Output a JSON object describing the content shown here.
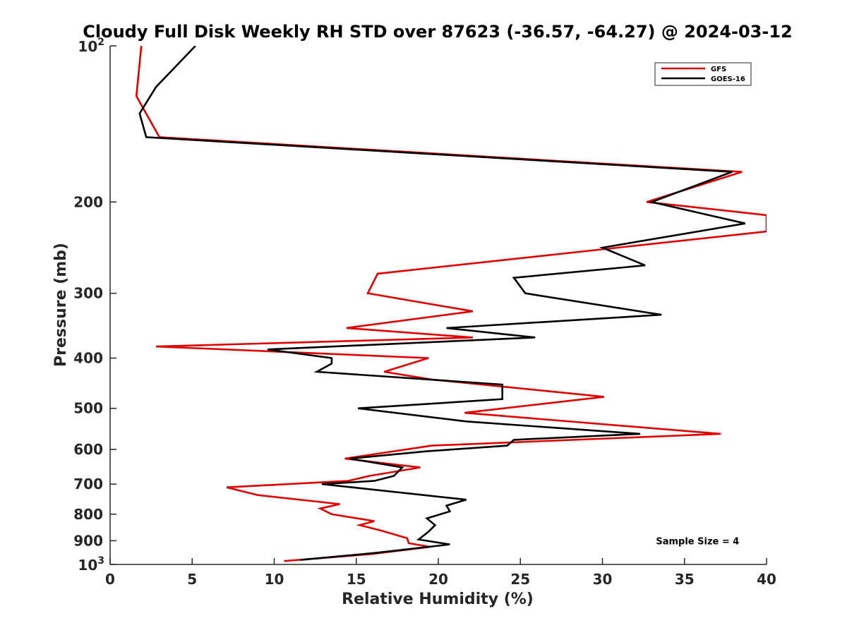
{
  "chart_data": {
    "type": "line",
    "title": "Cloudy Full Disk Weekly RH STD over 87623 (-36.57, -64.27) @ 2024-03-12",
    "xlabel": "Relative Humidity (%)",
    "ylabel": "Pressure (mb)",
    "xlim": [
      0,
      40
    ],
    "ylim": [
      100,
      1000
    ],
    "yscale": "log",
    "y_reversed": true,
    "x_ticks": [
      "0",
      "5",
      "10",
      "15",
      "20",
      "25",
      "30",
      "35",
      "40"
    ],
    "y_ticks": [
      {
        "value": 100,
        "base": "10",
        "exp": "2"
      },
      {
        "value": 200,
        "label": "200"
      },
      {
        "value": 300,
        "label": "300"
      },
      {
        "value": 400,
        "label": "400"
      },
      {
        "value": 500,
        "label": "500"
      },
      {
        "value": 600,
        "label": "600"
      },
      {
        "value": 700,
        "label": "700"
      },
      {
        "value": 800,
        "label": "800"
      },
      {
        "value": 900,
        "label": "900"
      },
      {
        "value": 1000,
        "base": "10",
        "exp": "3"
      }
    ],
    "grid": false,
    "legend_position": "top-right",
    "series": [
      {
        "name": "GFS",
        "color": "#e00000",
        "points": [
          [
            1.9,
            100
          ],
          [
            1.6,
            125
          ],
          [
            3.0,
            150
          ],
          [
            38.5,
            175
          ],
          [
            32.7,
            200
          ],
          [
            40.0,
            212
          ],
          [
            40.0,
            228
          ],
          [
            16.3,
            275
          ],
          [
            15.7,
            300
          ],
          [
            22.1,
            325
          ],
          [
            14.4,
            350
          ],
          [
            22.1,
            365
          ],
          [
            2.8,
            380
          ],
          [
            19.4,
            400
          ],
          [
            16.7,
            425
          ],
          [
            19.6,
            440
          ],
          [
            30.1,
            475
          ],
          [
            21.6,
            510
          ],
          [
            37.2,
            560
          ],
          [
            19.6,
            590
          ],
          [
            14.3,
            625
          ],
          [
            18.9,
            650
          ],
          [
            15.8,
            675
          ],
          [
            14.5,
            690
          ],
          [
            7.1,
            710
          ],
          [
            9.0,
            735
          ],
          [
            14.0,
            765
          ],
          [
            12.8,
            780
          ],
          [
            13.5,
            800
          ],
          [
            16.1,
            825
          ],
          [
            15.2,
            840
          ],
          [
            16.5,
            860
          ],
          [
            18.1,
            890
          ],
          [
            18.2,
            910
          ],
          [
            19.5,
            925
          ],
          [
            15.9,
            955
          ],
          [
            10.6,
            985
          ]
        ]
      },
      {
        "name": "GOES-16",
        "color": "#000000",
        "points": [
          [
            5.2,
            100
          ],
          [
            2.8,
            120
          ],
          [
            1.8,
            135
          ],
          [
            2.2,
            150
          ],
          [
            37.9,
            175
          ],
          [
            33.0,
            200
          ],
          [
            38.7,
            220
          ],
          [
            30.0,
            245
          ],
          [
            32.6,
            265
          ],
          [
            24.6,
            280
          ],
          [
            25.3,
            300
          ],
          [
            33.6,
            330
          ],
          [
            20.5,
            350
          ],
          [
            25.9,
            365
          ],
          [
            9.6,
            385
          ],
          [
            13.5,
            400
          ],
          [
            13.5,
            410
          ],
          [
            12.6,
            425
          ],
          [
            23.9,
            450
          ],
          [
            23.9,
            480
          ],
          [
            15.1,
            500
          ],
          [
            21.7,
            530
          ],
          [
            32.3,
            560
          ],
          [
            24.6,
            575
          ],
          [
            24.2,
            590
          ],
          [
            19.3,
            605
          ],
          [
            14.6,
            625
          ],
          [
            17.8,
            650
          ],
          [
            17.3,
            675
          ],
          [
            16.1,
            690
          ],
          [
            12.9,
            700
          ],
          [
            21.7,
            750
          ],
          [
            20.5,
            770
          ],
          [
            20.7,
            790
          ],
          [
            19.3,
            815
          ],
          [
            19.8,
            840
          ],
          [
            19.4,
            865
          ],
          [
            18.8,
            895
          ],
          [
            20.7,
            915
          ],
          [
            16.2,
            950
          ],
          [
            11.6,
            980
          ]
        ]
      }
    ],
    "annotations": [
      {
        "text": "Sample Size = 4",
        "x": 35.8,
        "y": 900
      }
    ]
  }
}
